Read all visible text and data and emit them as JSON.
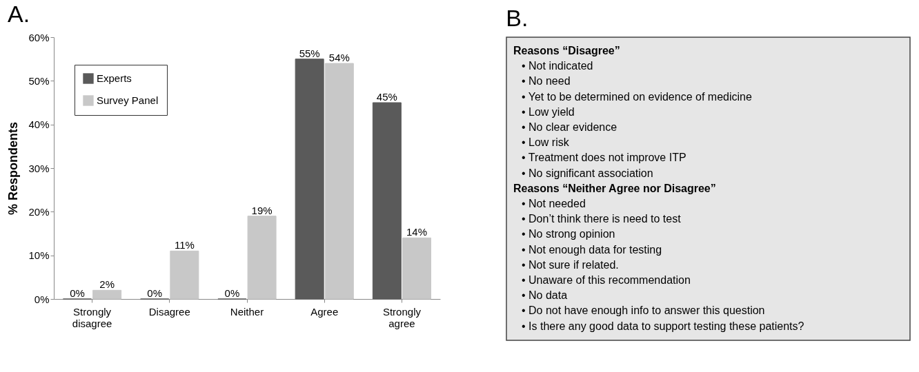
{
  "chart_data": [
    {
      "type": "bar",
      "title": "A.",
      "ylabel": "% Respondents",
      "categories": [
        "Strongly disagree",
        "Disagree",
        "Neither",
        "Agree",
        "Strongly agree"
      ],
      "series": [
        {
          "name": "Experts",
          "color": "#5a5a5a",
          "values": [
            0,
            0,
            0,
            55,
            45
          ],
          "value_labels": [
            "0%",
            "0%",
            "0%",
            "55%",
            "45%"
          ]
        },
        {
          "name": "Survey Panel",
          "color": "#c8c8c8",
          "values": [
            2,
            11,
            19,
            54,
            14
          ],
          "value_labels": [
            "2%",
            "11%",
            "19%",
            "54%",
            "14%"
          ]
        }
      ],
      "ylim": [
        0,
        60
      ],
      "yticks": [
        {
          "value": 0,
          "label": "0%"
        },
        {
          "value": 10,
          "label": "10%"
        },
        {
          "value": 20,
          "label": "20%"
        },
        {
          "value": 30,
          "label": "30%"
        },
        {
          "value": 40,
          "label": "40%"
        },
        {
          "value": 50,
          "label": "50%"
        },
        {
          "value": 60,
          "label": "60%"
        }
      ],
      "legend": "top left"
    },
    {
      "type": "other",
      "title": "B.",
      "annotations": [
        "Reasons “Disagree”",
        "• Not indicated",
        "• No need",
        "• Yet to be determined on evidence of medicine",
        "• Low yield",
        "• No clear evidence",
        "• Low risk",
        "• Treatment does not improve ITP",
        "• No significant association",
        "Reasons “Neither Agree nor Disagree”",
        "• Not needed",
        "• Don’t think there is need to test",
        "• No strong opinion",
        "• Not enough data for testing",
        "• Not sure if related.",
        "• Unaware of this recommendation",
        "• No data",
        "• Do not have enough info to answer this question",
        "• Is there any good data to support testing these patients?"
      ]
    }
  ]
}
